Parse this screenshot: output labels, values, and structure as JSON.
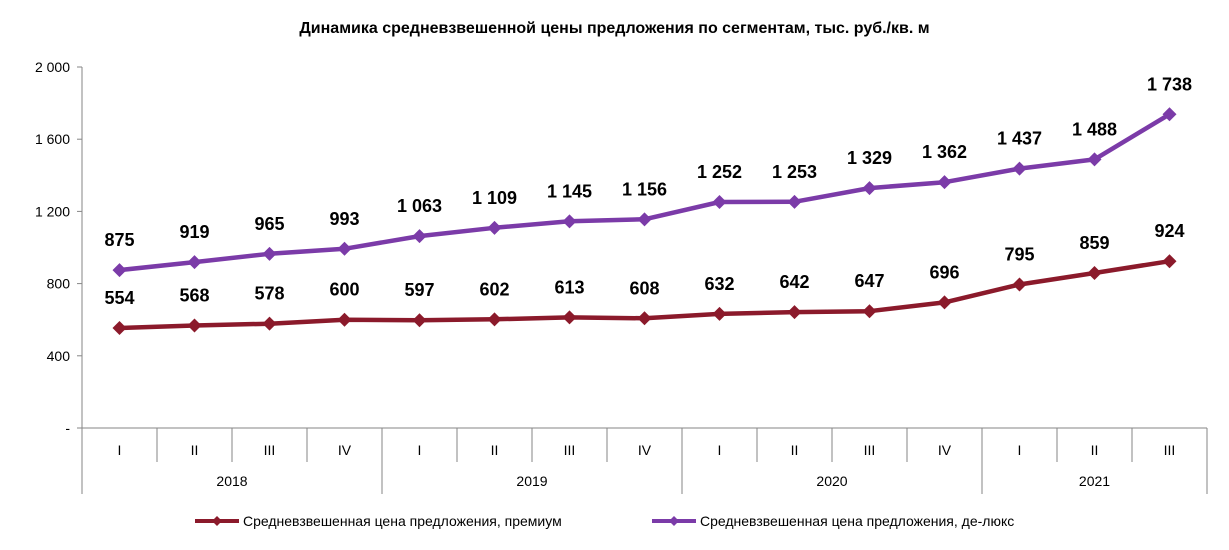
{
  "chart_data": {
    "type": "line",
    "title": "Динамика средневзвешенной цены предложения по сегментам, тыс. руб./кв. м",
    "categories": [
      "I",
      "II",
      "III",
      "IV",
      "I",
      "II",
      "III",
      "IV",
      "I",
      "II",
      "III",
      "IV",
      "I",
      "II",
      "III"
    ],
    "groups": [
      {
        "label": "2018",
        "count": 4
      },
      {
        "label": "2019",
        "count": 4
      },
      {
        "label": "2020",
        "count": 4
      },
      {
        "label": "2021",
        "count": 3
      }
    ],
    "y_ticks": [
      {
        "value": 0,
        "label": "-"
      },
      {
        "value": 400,
        "label": "400"
      },
      {
        "value": 800,
        "label": "800"
      },
      {
        "value": 1200,
        "label": "1 200"
      },
      {
        "value": 1600,
        "label": "1 600"
      },
      {
        "value": 2000,
        "label": "2 000"
      }
    ],
    "ylim": [
      0,
      2000
    ],
    "grid": false,
    "legend_position": "bottom",
    "series": [
      {
        "name": "Средневзвешенная цена предложения, премиум",
        "color": "#8B1A2B",
        "values": [
          554,
          568,
          578,
          600,
          597,
          602,
          613,
          608,
          632,
          642,
          647,
          696,
          795,
          859,
          924
        ],
        "labels": [
          "554",
          "568",
          "578",
          "600",
          "597",
          "602",
          "613",
          "608",
          "632",
          "642",
          "647",
          "696",
          "795",
          "859",
          "924"
        ]
      },
      {
        "name": "Средневзвешенная цена предложения, де-люкс",
        "color": "#7B3BA8",
        "values": [
          875,
          919,
          965,
          993,
          1063,
          1109,
          1145,
          1156,
          1252,
          1253,
          1329,
          1362,
          1437,
          1488,
          1738
        ],
        "labels": [
          "875",
          "919",
          "965",
          "993",
          "1 063",
          "1 109",
          "1 145",
          "1 156",
          "1 252",
          "1 253",
          "1 329",
          "1 362",
          "1 437",
          "1 488",
          "1 738"
        ]
      }
    ]
  }
}
